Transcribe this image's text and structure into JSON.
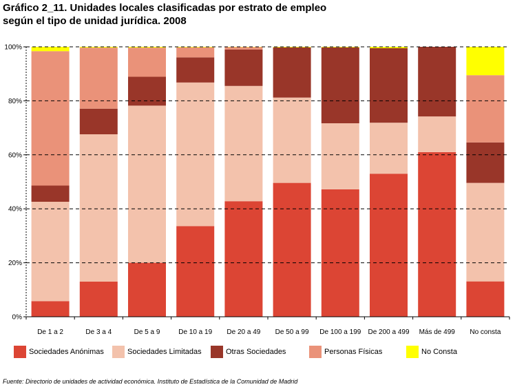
{
  "title": {
    "line1": "Gráfico 2_11. Unidades locales clasificadas por estrato de empleo",
    "line2": "según el tipo de unidad jurídica. 2008"
  },
  "source": "Fuente: Directorio de unidades de actividad económica. Instituto de Estadística de la Comunidad de Madrid",
  "chart_data": {
    "type": "bar",
    "stacked": true,
    "categories": [
      "De 1 a 2",
      "De 3 a 4",
      "De 5 a 9",
      "De 10 a 19",
      "De 20 a 49",
      "De 50 a 99",
      "De 100 a 199",
      "De 200 a 499",
      "Más de 499",
      "No consta"
    ],
    "series": [
      {
        "name": "Sociedades Anónimas",
        "color": "#DC4534",
        "values": [
          5.8,
          13.0,
          20.0,
          33.6,
          42.8,
          49.6,
          47.2,
          53.0,
          61.0,
          13.1
        ]
      },
      {
        "name": "Sociedades Limitadas",
        "color": "#F3C2AC",
        "values": [
          36.8,
          54.6,
          58.2,
          53.2,
          42.7,
          31.6,
          24.5,
          18.9,
          13.2,
          36.5
        ]
      },
      {
        "name": "Otras Sociedades",
        "color": "#993629",
        "values": [
          6.0,
          9.5,
          10.7,
          9.3,
          13.5,
          18.6,
          28.1,
          27.6,
          25.8,
          15.0
        ]
      },
      {
        "name": "Personas Físicas",
        "color": "#EA9279",
        "values": [
          49.8,
          22.6,
          10.8,
          3.7,
          0.9,
          0.0,
          0.0,
          0.0,
          0.0,
          24.9
        ]
      },
      {
        "name": "No Consta",
        "color": "#FFFF00",
        "values": [
          1.6,
          0.3,
          0.3,
          0.2,
          0.1,
          0.2,
          0.2,
          0.5,
          0.0,
          10.5
        ]
      }
    ],
    "ylim": [
      0,
      100
    ],
    "yticks": [
      "0%",
      "20%",
      "40%",
      "60%",
      "80%",
      "100%"
    ],
    "grid": true,
    "legend_position": "bottom"
  }
}
